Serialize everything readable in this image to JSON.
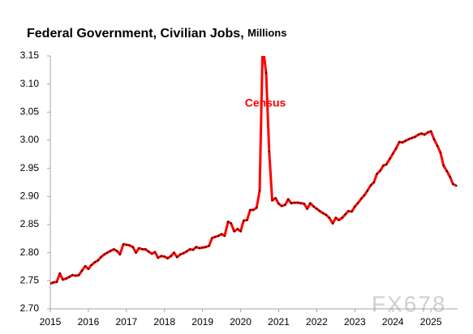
{
  "chart_data": {
    "type": "line",
    "title": "Federal Government, Civilian Jobs,",
    "title_unit": "Millions",
    "annotation": "Census",
    "watermark": "FX678",
    "xlim": [
      2015,
      2025.7
    ],
    "xticks": [
      2015,
      2016,
      2017,
      2018,
      2019,
      2020,
      2021,
      2022,
      2023,
      2024,
      2025
    ],
    "ylim": [
      2.7,
      3.15
    ],
    "yticks": [
      {
        "value": 2.7,
        "label": "2.70"
      },
      2.75,
      {
        "value": 2.8,
        "label": "2.80"
      },
      2.85,
      {
        "value": 2.9,
        "label": "2.90"
      },
      2.95,
      {
        "value": 3.0,
        "label": "3.00"
      },
      3.05,
      {
        "value": 3.1,
        "label": "3.10"
      },
      3.15
    ],
    "grid": false,
    "series": [
      {
        "color": "#ff0000",
        "marker_color": "#000000",
        "x": [
          2015.0,
          2015.08,
          2015.17,
          2015.25,
          2015.33,
          2015.42,
          2015.5,
          2015.58,
          2015.67,
          2015.75,
          2015.83,
          2015.92,
          2016.0,
          2016.08,
          2016.17,
          2016.25,
          2016.33,
          2016.42,
          2016.5,
          2016.58,
          2016.67,
          2016.75,
          2016.83,
          2016.92,
          2017.0,
          2017.08,
          2017.17,
          2017.25,
          2017.33,
          2017.42,
          2017.5,
          2017.58,
          2017.67,
          2017.75,
          2017.83,
          2017.92,
          2018.0,
          2018.08,
          2018.17,
          2018.25,
          2018.33,
          2018.42,
          2018.5,
          2018.58,
          2018.67,
          2018.75,
          2018.83,
          2018.92,
          2019.0,
          2019.08,
          2019.17,
          2019.25,
          2019.33,
          2019.42,
          2019.5,
          2019.58,
          2019.67,
          2019.75,
          2019.83,
          2019.92,
          2020.0,
          2020.08,
          2020.17,
          2020.25,
          2020.33,
          2020.42,
          2020.5,
          2020.58,
          2020.67,
          2020.75,
          2020.83,
          2020.92,
          2021.0,
          2021.08,
          2021.17,
          2021.25,
          2021.33,
          2021.42,
          2021.5,
          2021.58,
          2021.67,
          2021.75,
          2021.83,
          2021.92,
          2022.0,
          2022.08,
          2022.17,
          2022.25,
          2022.33,
          2022.42,
          2022.5,
          2022.58,
          2022.67,
          2022.75,
          2022.83,
          2022.92,
          2023.0,
          2023.08,
          2023.17,
          2023.25,
          2023.33,
          2023.42,
          2023.5,
          2023.58,
          2023.67,
          2023.75,
          2023.83,
          2023.92,
          2024.0,
          2024.08,
          2024.17,
          2024.25,
          2024.33,
          2024.42,
          2024.5,
          2024.58,
          2024.67,
          2024.75,
          2024.83,
          2024.92,
          2025.0,
          2025.08,
          2025.17,
          2025.25,
          2025.33,
          2025.42,
          2025.5,
          2025.58,
          2025.67
        ],
        "values": [
          2.745,
          2.747,
          2.748,
          2.763,
          2.752,
          2.754,
          2.757,
          2.76,
          2.759,
          2.76,
          2.768,
          2.776,
          2.771,
          2.778,
          2.783,
          2.786,
          2.792,
          2.797,
          2.8,
          2.803,
          2.806,
          2.803,
          2.797,
          2.815,
          2.814,
          2.813,
          2.81,
          2.8,
          2.808,
          2.806,
          2.806,
          2.802,
          2.798,
          2.801,
          2.791,
          2.794,
          2.793,
          2.79,
          2.794,
          2.8,
          2.792,
          2.797,
          2.799,
          2.802,
          2.806,
          2.805,
          2.81,
          2.808,
          2.809,
          2.81,
          2.812,
          2.826,
          2.828,
          2.83,
          2.833,
          2.83,
          2.855,
          2.852,
          2.838,
          2.842,
          2.838,
          2.857,
          2.858,
          2.876,
          2.876,
          2.88,
          2.91,
          3.17,
          3.12,
          2.98,
          2.893,
          2.897,
          2.887,
          2.883,
          2.885,
          2.895,
          2.888,
          2.889,
          2.889,
          2.888,
          2.887,
          2.878,
          2.888,
          2.882,
          2.878,
          2.874,
          2.87,
          2.867,
          2.862,
          2.852,
          2.862,
          2.858,
          2.862,
          2.868,
          2.874,
          2.873,
          2.882,
          2.888,
          2.896,
          2.902,
          2.91,
          2.92,
          2.925,
          2.94,
          2.946,
          2.955,
          2.957,
          2.967,
          2.976,
          2.985,
          2.997,
          2.996,
          2.999,
          3.002,
          3.004,
          3.006,
          3.01,
          3.012,
          3.01,
          3.014,
          3.016,
          3.002,
          2.99,
          2.978,
          2.955,
          2.945,
          2.935,
          2.922,
          2.919
        ]
      }
    ]
  }
}
